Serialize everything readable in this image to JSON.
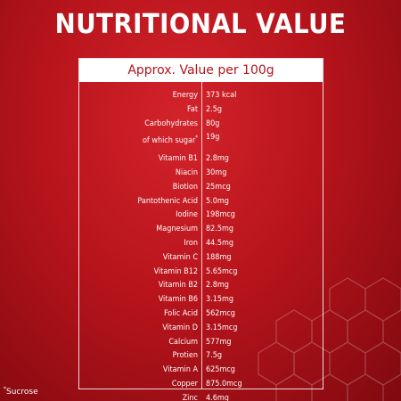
{
  "title": "NUTRITIONAL VALUE",
  "panel_header": "Approx. Value per 100g",
  "group_macros": [
    {
      "name": "Energy",
      "value": "373 kcal"
    },
    {
      "name": "Fat",
      "value": "2.5g"
    },
    {
      "name": "Carbohydrates",
      "value": "80g"
    },
    {
      "name": "of which sugar",
      "value": "19g",
      "mark": "*"
    }
  ],
  "group_micros": [
    {
      "name": "Vitamin B1",
      "value": "2.8mg"
    },
    {
      "name": "Niacin",
      "value": "30mg"
    },
    {
      "name": "Biotion",
      "value": "25mcg"
    },
    {
      "name": "Pantothenic Acid",
      "value": "5.0mg"
    },
    {
      "name": "Iodine",
      "value": "198mcg"
    },
    {
      "name": "Magnesium",
      "value": "82.5mg"
    },
    {
      "name": "Iron",
      "value": "44.5mg"
    },
    {
      "name": "Vitamin C",
      "value": "188mg"
    },
    {
      "name": "Vitamin B12",
      "value": "5.65mcg"
    },
    {
      "name": "Vitamin B2",
      "value": "2.8mg"
    },
    {
      "name": "Vitamin B6",
      "value": "3.15mg"
    },
    {
      "name": "Folic Acid",
      "value": "562mcg"
    },
    {
      "name": "Vitamin D",
      "value": "3.15mcg"
    },
    {
      "name": "Calcium",
      "value": "577mg"
    },
    {
      "name": "Protien",
      "value": "7.5g"
    },
    {
      "name": "Vitamin A",
      "value": "625mcg"
    },
    {
      "name": "Copper",
      "value": "875.0mcg"
    },
    {
      "name": "Zinc",
      "value": "4.6mg"
    }
  ],
  "footnote": {
    "mark": "*",
    "text": "Sucrose"
  },
  "colors": {
    "background": "#b8141c",
    "header_text": "#b3141b",
    "text": "#ffffff"
  }
}
